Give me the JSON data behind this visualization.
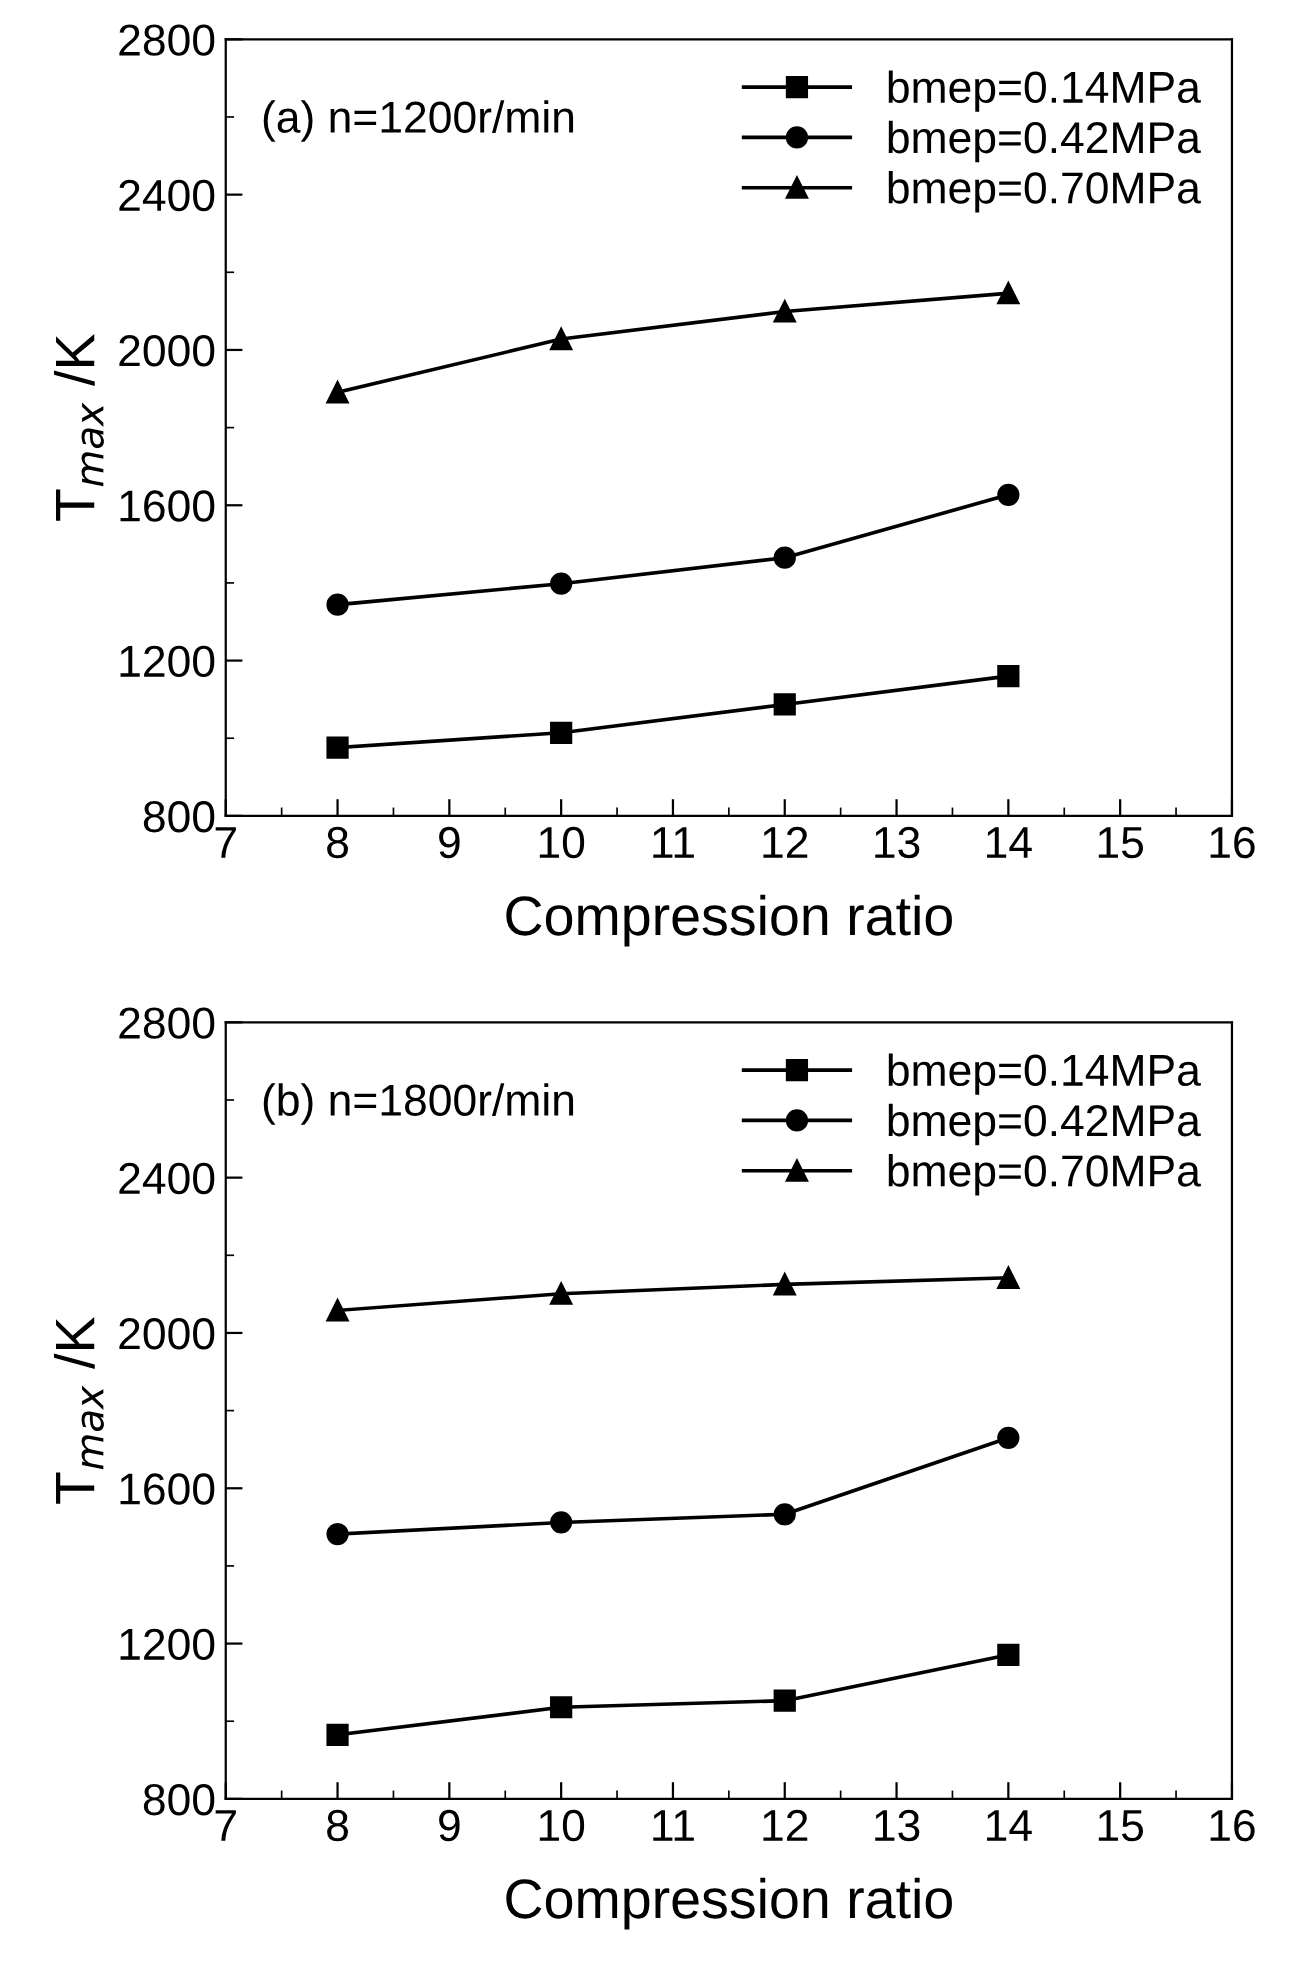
{
  "chart_data": [
    {
      "type": "line",
      "xlabel": "Compression ratio",
      "ylabel": "T$_{max}$ /K",
      "annotations": [
        "(a) n=1200r/min"
      ],
      "x": [
        8,
        10,
        12,
        14
      ],
      "xlim": [
        7,
        16
      ],
      "xticks": [
        7,
        8,
        9,
        10,
        11,
        12,
        13,
        14,
        15,
        16
      ],
      "ylim": [
        800,
        2800
      ],
      "yticks": [
        800,
        1200,
        1600,
        2000,
        2400,
        2800
      ],
      "legend": "top right",
      "grid": false,
      "line_style": "solid",
      "series": [
        {
          "name": "bmep=0.14MPa",
          "color": "#000000",
          "marker": "square",
          "values": [
            976,
            1014,
            1087,
            1160
          ]
        },
        {
          "name": "bmep=0.42MPa",
          "color": "#000000",
          "marker": "circle",
          "values": [
            1344,
            1398,
            1465,
            1627
          ]
        },
        {
          "name": "bmep=0.70MPa",
          "color": "#000000",
          "marker": "triangle",
          "values": [
            1891,
            2028,
            2099,
            2146
          ]
        }
      ]
    },
    {
      "type": "line",
      "xlabel": "Compression ratio",
      "ylabel": "T$_{max}$ /K",
      "annotations": [
        "(b) n=1800r/min"
      ],
      "x": [
        8,
        10,
        12,
        14
      ],
      "xlim": [
        7,
        16
      ],
      "xticks": [
        7,
        8,
        9,
        10,
        11,
        12,
        13,
        14,
        15,
        16
      ],
      "ylim": [
        800,
        2800
      ],
      "yticks": [
        800,
        1200,
        1600,
        2000,
        2400,
        2800
      ],
      "legend": "top right",
      "grid": false,
      "line_style": "solid",
      "series": [
        {
          "name": "bmep=0.14MPa",
          "color": "#000000",
          "marker": "square",
          "values": [
            965,
            1036,
            1053,
            1171
          ]
        },
        {
          "name": "bmep=0.42MPa",
          "color": "#000000",
          "marker": "circle",
          "values": [
            1482,
            1512,
            1533,
            1730
          ]
        },
        {
          "name": "bmep=0.70MPa",
          "color": "#000000",
          "marker": "triangle",
          "values": [
            2058,
            2101,
            2125,
            2142
          ]
        }
      ]
    }
  ]
}
